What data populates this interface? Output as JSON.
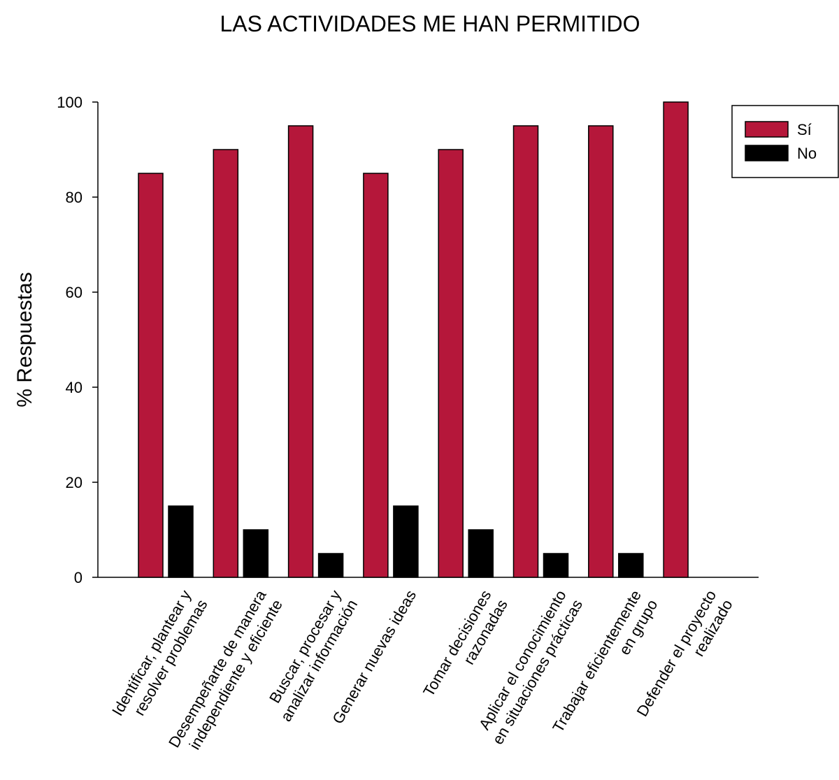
{
  "chart_data": {
    "type": "bar",
    "title": "LAS ACTIVIDADES ME HAN PERMITIDO",
    "y_label": "% Respuestas",
    "categories": [
      [
        "Identificar, plantear y",
        "resolver problemas"
      ],
      [
        "Desempeñarte de manera",
        "independiente y eficiente"
      ],
      [
        "Buscar, procesar y",
        "analizar información"
      ],
      [
        "Generar nuevas ideas"
      ],
      [
        "Tomar decisiones",
        "razonadas"
      ],
      [
        "Aplicar el conocimiento",
        "en situaciones prácticas"
      ],
      [
        "Trabajar eficientemente",
        "en grupo"
      ],
      [
        "Defender el proyecto",
        "realizado"
      ]
    ],
    "series": [
      {
        "name": "Sí",
        "color": "#b5173a",
        "values": [
          85,
          90,
          95,
          85,
          90,
          95,
          95,
          100
        ]
      },
      {
        "name": "No",
        "color": "#000000",
        "values": [
          15,
          10,
          5,
          15,
          10,
          5,
          5,
          0
        ]
      }
    ],
    "ylim": [
      0,
      100
    ],
    "yticks": [
      0,
      20,
      40,
      60,
      80,
      100
    ],
    "legend": "upper right"
  }
}
